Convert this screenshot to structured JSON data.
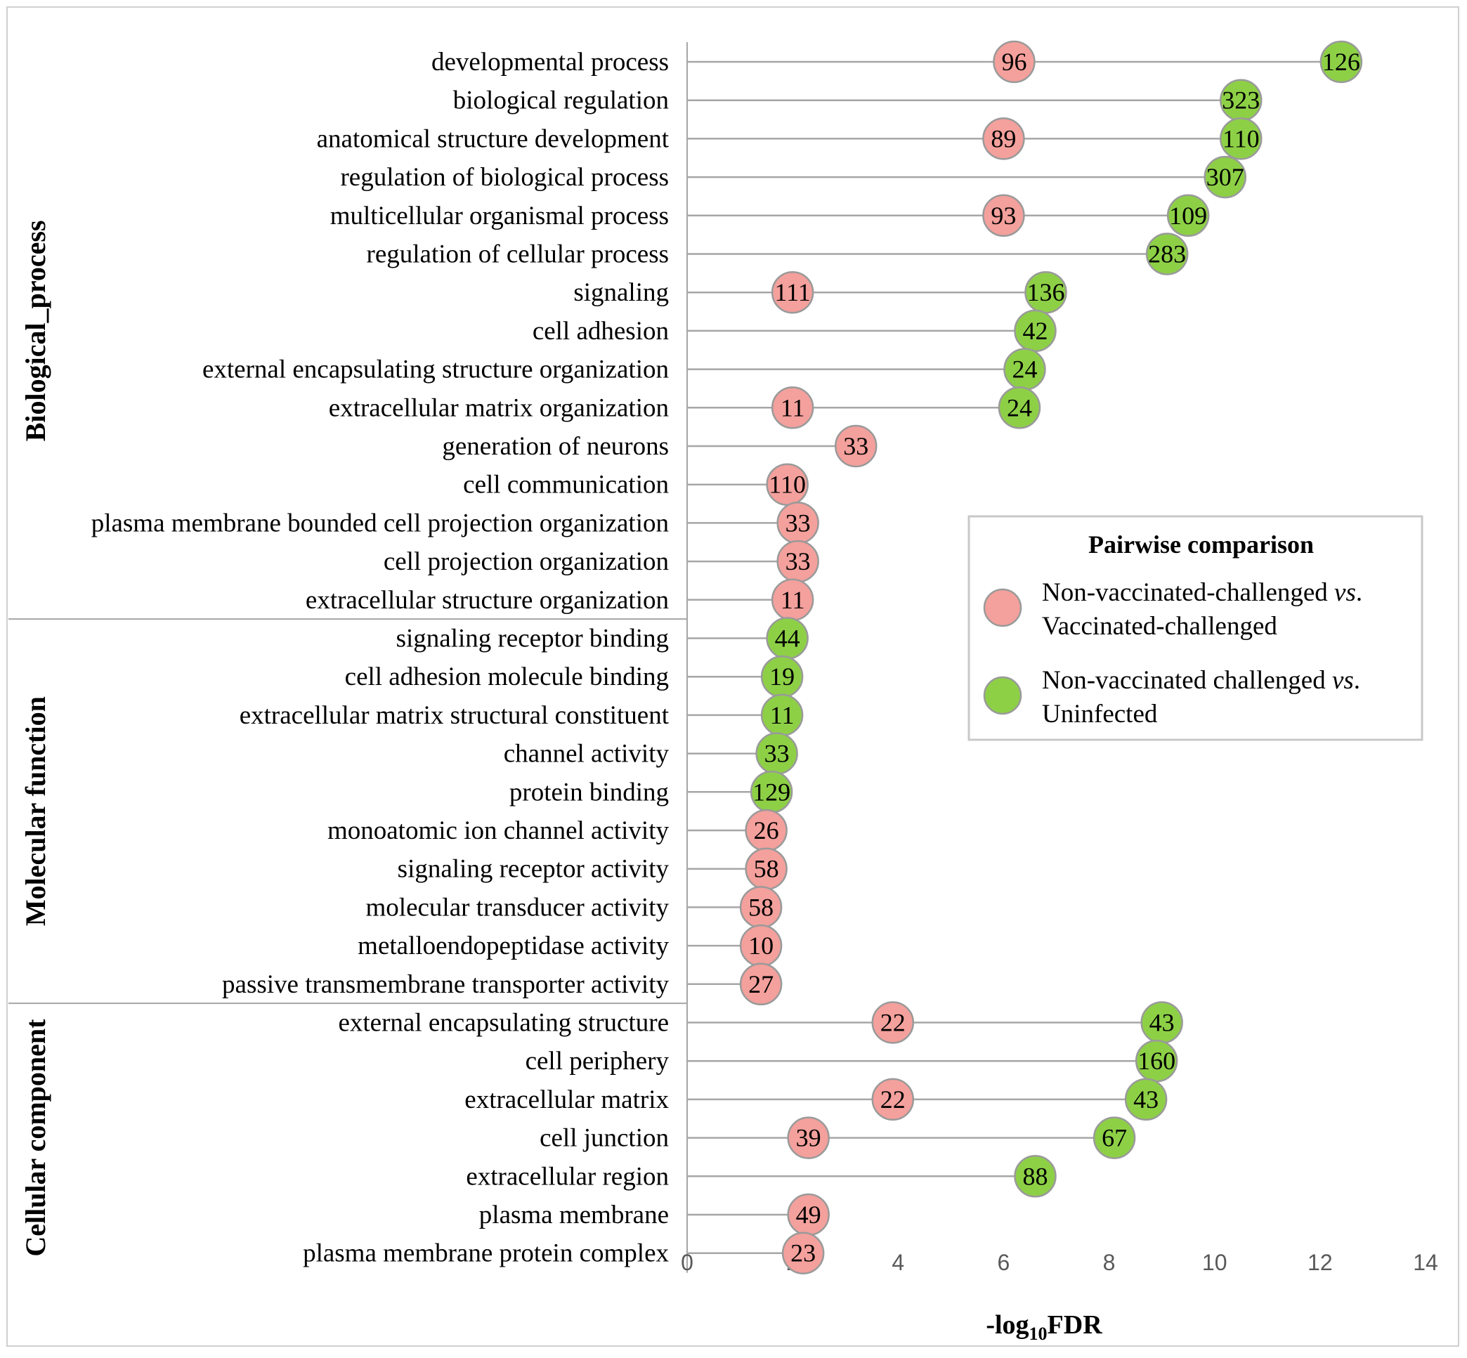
{
  "chart_data": {
    "type": "scatter",
    "subtype": "lollipop / dot plot",
    "xlabel": "-log",
    "xlabel_subscript": "10",
    "xlabel_suffix": "FDR",
    "xlim": [
      0,
      14
    ],
    "xticks": [
      "0",
      "2",
      "4",
      "6",
      "8",
      "10",
      "12",
      "14"
    ],
    "grid": false,
    "colors": {
      "pink": "#f4a09c",
      "green": "#8dd046",
      "stem": "#a6a6a6",
      "border": "#9a9a9a"
    },
    "legend": {
      "title": "Pairwise comparison",
      "position": "right",
      "entries": [
        {
          "color": "pink",
          "line1": "Non-vaccinated-challenged ",
          "italic": "vs",
          "dot": ".",
          "line2": "Vaccinated-challenged"
        },
        {
          "color": "green",
          "line1": "Non-vaccinated challenged ",
          "italic": "vs",
          "dot": ".",
          "line2": "Uninfected"
        }
      ]
    },
    "groups": [
      {
        "name": "Biological_process",
        "start": 0,
        "end": 14
      },
      {
        "name": "Molecular function",
        "start": 15,
        "end": 24
      },
      {
        "name": "Cellular component",
        "start": 25,
        "end": 31
      }
    ],
    "rows": [
      {
        "term": "developmental process",
        "points": [
          {
            "series": "pink",
            "x": 6.2,
            "count": "96"
          },
          {
            "series": "green",
            "x": 12.4,
            "count": "126"
          }
        ]
      },
      {
        "term": "biological regulation",
        "points": [
          {
            "series": "green",
            "x": 10.5,
            "count": "323"
          }
        ]
      },
      {
        "term": "anatomical structure development",
        "points": [
          {
            "series": "pink",
            "x": 6.0,
            "count": "89"
          },
          {
            "series": "green",
            "x": 10.5,
            "count": "110"
          }
        ]
      },
      {
        "term": "regulation of biological process",
        "points": [
          {
            "series": "green",
            "x": 10.2,
            "count": "307"
          }
        ]
      },
      {
        "term": "multicellular organismal process",
        "points": [
          {
            "series": "pink",
            "x": 6.0,
            "count": "93"
          },
          {
            "series": "green",
            "x": 9.5,
            "count": "109"
          }
        ]
      },
      {
        "term": "regulation of cellular process",
        "points": [
          {
            "series": "green",
            "x": 9.1,
            "count": "283"
          }
        ]
      },
      {
        "term": "signaling",
        "points": [
          {
            "series": "pink",
            "x": 2.0,
            "count": "111"
          },
          {
            "series": "green",
            "x": 6.8,
            "count": "136"
          }
        ]
      },
      {
        "term": "cell adhesion",
        "points": [
          {
            "series": "green",
            "x": 6.6,
            "count": "42"
          }
        ]
      },
      {
        "term": "external encapsulating structure organization",
        "points": [
          {
            "series": "green",
            "x": 6.4,
            "count": "24"
          }
        ]
      },
      {
        "term": "extracellular matrix organization",
        "points": [
          {
            "series": "pink",
            "x": 2.0,
            "count": "11"
          },
          {
            "series": "green",
            "x": 6.3,
            "count": "24"
          }
        ]
      },
      {
        "term": "generation of neurons",
        "points": [
          {
            "series": "pink",
            "x": 3.2,
            "count": "33"
          }
        ]
      },
      {
        "term": "cell communication",
        "points": [
          {
            "series": "pink",
            "x": 1.9,
            "count": "110"
          }
        ]
      },
      {
        "term": "plasma membrane bounded cell projection organization",
        "points": [
          {
            "series": "pink",
            "x": 2.1,
            "count": "33"
          }
        ]
      },
      {
        "term": "cell projection organization",
        "points": [
          {
            "series": "pink",
            "x": 2.1,
            "count": "33"
          }
        ]
      },
      {
        "term": "extracellular structure organization",
        "points": [
          {
            "series": "pink",
            "x": 2.0,
            "count": "11"
          }
        ]
      },
      {
        "term": "signaling receptor binding",
        "points": [
          {
            "series": "green",
            "x": 1.9,
            "count": "44"
          }
        ]
      },
      {
        "term": "cell adhesion molecule binding",
        "points": [
          {
            "series": "green",
            "x": 1.8,
            "count": "19"
          }
        ]
      },
      {
        "term": "extracellular matrix structural constituent",
        "points": [
          {
            "series": "green",
            "x": 1.8,
            "count": "11"
          }
        ]
      },
      {
        "term": "channel activity",
        "points": [
          {
            "series": "green",
            "x": 1.7,
            "count": "33"
          }
        ]
      },
      {
        "term": "protein binding",
        "points": [
          {
            "series": "green",
            "x": 1.6,
            "count": "129"
          }
        ]
      },
      {
        "term": "monoatomic ion channel activity",
        "points": [
          {
            "series": "pink",
            "x": 1.5,
            "count": "26"
          }
        ]
      },
      {
        "term": "signaling receptor activity",
        "points": [
          {
            "series": "pink",
            "x": 1.5,
            "count": "58"
          }
        ]
      },
      {
        "term": "molecular transducer activity",
        "points": [
          {
            "series": "pink",
            "x": 1.4,
            "count": "58"
          }
        ]
      },
      {
        "term": "metalloendopeptidase activity",
        "points": [
          {
            "series": "pink",
            "x": 1.4,
            "count": "10"
          }
        ]
      },
      {
        "term": "passive transmembrane transporter activity",
        "points": [
          {
            "series": "pink",
            "x": 1.4,
            "count": "27"
          }
        ]
      },
      {
        "term": "external encapsulating structure",
        "points": [
          {
            "series": "pink",
            "x": 3.9,
            "count": "22"
          },
          {
            "series": "green",
            "x": 9.0,
            "count": "43"
          }
        ]
      },
      {
        "term": "cell periphery",
        "points": [
          {
            "series": "green",
            "x": 8.9,
            "count": "160"
          }
        ]
      },
      {
        "term": "extracellular matrix",
        "points": [
          {
            "series": "pink",
            "x": 3.9,
            "count": "22"
          },
          {
            "series": "green",
            "x": 8.7,
            "count": "43"
          }
        ]
      },
      {
        "term": "cell junction",
        "points": [
          {
            "series": "pink",
            "x": 2.3,
            "count": "39"
          },
          {
            "series": "green",
            "x": 8.1,
            "count": "67"
          }
        ]
      },
      {
        "term": "extracellular region",
        "points": [
          {
            "series": "green",
            "x": 6.6,
            "count": "88"
          }
        ]
      },
      {
        "term": "plasma membrane",
        "points": [
          {
            "series": "pink",
            "x": 2.3,
            "count": "49"
          }
        ]
      },
      {
        "term": "plasma membrane protein complex",
        "points": [
          {
            "series": "pink",
            "x": 2.2,
            "count": "23"
          }
        ]
      }
    ]
  }
}
